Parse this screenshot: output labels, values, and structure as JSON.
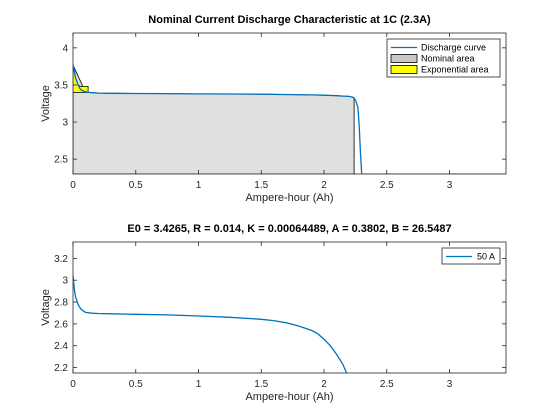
{
  "colors": {
    "curve": "#0072BD",
    "nominal_fill": "#e0e0e0",
    "exponential_fill": "#ffff00",
    "axis": "#262626"
  },
  "chart_data": [
    {
      "type": "area",
      "title": "Nominal Current Discharge Characteristic at 1C (2.3A)",
      "xlabel": "Ampere-hour (Ah)",
      "ylabel": "Voltage",
      "xlim": [
        0,
        3.45
      ],
      "ylim": [
        2.3,
        4.2
      ],
      "xticks": [
        0,
        0.5,
        1,
        1.5,
        2,
        2.5,
        3
      ],
      "xtick_labels": [
        "0",
        "0.5",
        "1",
        "1.5",
        "2",
        "2.5",
        "3"
      ],
      "yticks": [
        2.5,
        3,
        3.5,
        4
      ],
      "ytick_labels": [
        "2.5",
        "3",
        "3.5",
        "4"
      ],
      "grid": false,
      "legend_position": "top-right",
      "legend": [
        {
          "label": "Discharge curve",
          "kind": "line"
        },
        {
          "label": "Nominal area",
          "kind": "patch-gray"
        },
        {
          "label": "Exponential area",
          "kind": "patch-yellow"
        }
      ],
      "series": [
        {
          "name": "Discharge curve",
          "x": [
            0,
            0.01,
            0.02,
            0.04,
            0.06,
            0.09,
            0.12,
            0.16,
            0.2,
            0.3,
            0.5,
            0.75,
            1.0,
            1.25,
            1.5,
            1.75,
            1.9,
            2.0,
            2.1,
            2.15,
            2.2,
            2.23,
            2.25,
            2.27,
            2.28,
            2.29,
            2.3,
            2.31,
            3.45
          ],
          "y": [
            3.77,
            3.7,
            3.6,
            3.5,
            3.44,
            3.41,
            3.4,
            3.395,
            3.39,
            3.388,
            3.385,
            3.383,
            3.38,
            3.378,
            3.375,
            3.37,
            3.366,
            3.362,
            3.355,
            3.35,
            3.345,
            3.335,
            3.3,
            3.2,
            2.95,
            2.6,
            2.3,
            2.3,
            2.3
          ]
        }
      ],
      "nominal_area": {
        "x": [
          0,
          0.1,
          0.2,
          0.5,
          1.0,
          1.5,
          1.9,
          2.1,
          2.2,
          2.24,
          2.24
        ],
        "y": [
          3.77,
          3.4,
          3.39,
          3.385,
          3.38,
          3.375,
          3.366,
          3.355,
          3.345,
          3.33,
          2.3
        ]
      },
      "exponential_area": {
        "x": [
          0,
          0.02,
          0.04,
          0.06,
          0.09,
          0.12,
          0.12
        ],
        "y": [
          3.77,
          3.6,
          3.5,
          3.48,
          3.48,
          3.48,
          3.4
        ]
      }
    },
    {
      "type": "line",
      "title": "E0 = 3.4265, R = 0.014, K = 0.00064489, A = 0.3802, B = 26.5487",
      "xlabel": "Ampere-hour (Ah)",
      "ylabel": "Voltage",
      "xlim": [
        0,
        3.45
      ],
      "ylim": [
        2.15,
        3.35
      ],
      "xticks": [
        0,
        0.5,
        1,
        1.5,
        2,
        2.5,
        3
      ],
      "xtick_labels": [
        "0",
        "0.5",
        "1",
        "1.5",
        "2",
        "2.5",
        "3"
      ],
      "yticks": [
        2.2,
        2.4,
        2.6,
        2.8,
        3,
        3.2
      ],
      "ytick_labels": [
        "2.2",
        "2.4",
        "2.6",
        "2.8",
        "3",
        "3.2"
      ],
      "grid": false,
      "legend_position": "top-right",
      "legend": [
        {
          "label": "50 A",
          "kind": "line"
        }
      ],
      "series": [
        {
          "name": "50 A",
          "x": [
            0,
            0.01,
            0.02,
            0.04,
            0.06,
            0.08,
            0.1,
            0.15,
            0.2,
            0.3,
            0.5,
            0.75,
            1.0,
            1.25,
            1.5,
            1.6,
            1.7,
            1.8,
            1.9,
            1.95,
            2.0,
            2.05,
            2.1,
            2.15,
            2.18
          ],
          "y": [
            3.05,
            2.92,
            2.85,
            2.78,
            2.74,
            2.72,
            2.705,
            2.698,
            2.695,
            2.692,
            2.688,
            2.682,
            2.672,
            2.66,
            2.642,
            2.63,
            2.61,
            2.58,
            2.54,
            2.51,
            2.46,
            2.4,
            2.32,
            2.23,
            2.15
          ]
        }
      ]
    }
  ]
}
